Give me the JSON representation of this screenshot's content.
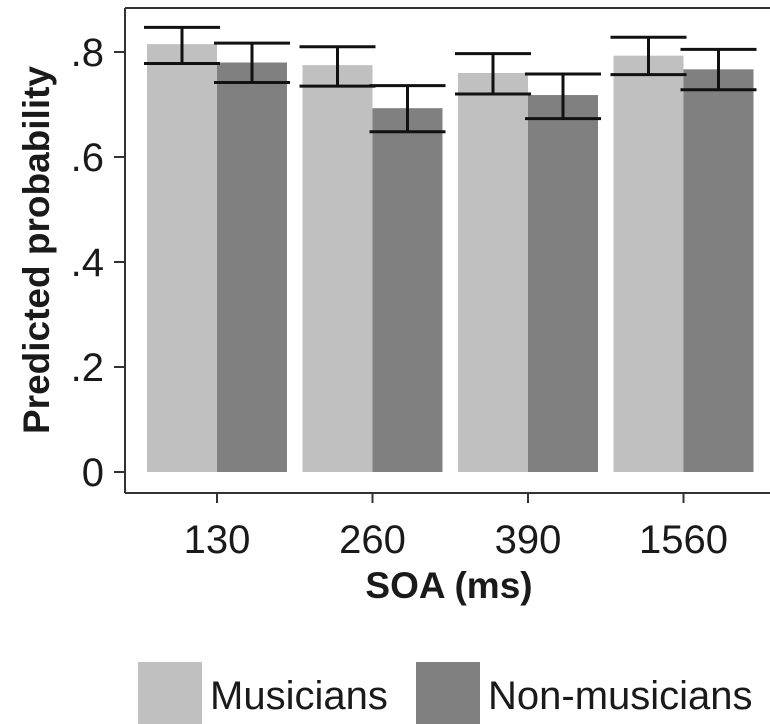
{
  "chart_data": {
    "type": "bar",
    "xlabel": "SOA (ms)",
    "ylabel": "Predicted probability",
    "categories": [
      "130",
      "260",
      "390",
      "1560"
    ],
    "series": [
      {
        "name": "Musicians",
        "color": "#c0c0c0",
        "values": [
          0.815,
          0.775,
          0.76,
          0.793
        ],
        "err_low": [
          0.778,
          0.735,
          0.72,
          0.757
        ],
        "err_high": [
          0.847,
          0.81,
          0.797,
          0.828
        ]
      },
      {
        "name": "Non-musicians",
        "color": "#808080",
        "values": [
          0.78,
          0.693,
          0.718,
          0.767
        ],
        "err_low": [
          0.742,
          0.648,
          0.673,
          0.728
        ],
        "err_high": [
          0.817,
          0.736,
          0.758,
          0.805
        ]
      }
    ],
    "ylim": [
      -0.03,
      0.88
    ],
    "yticks": [
      0,
      0.2,
      0.4,
      0.6,
      0.8
    ],
    "ytick_labels": [
      "0",
      ".2",
      ".4",
      ".6",
      ".8"
    ],
    "grid": false,
    "legend_position": "bottom"
  }
}
